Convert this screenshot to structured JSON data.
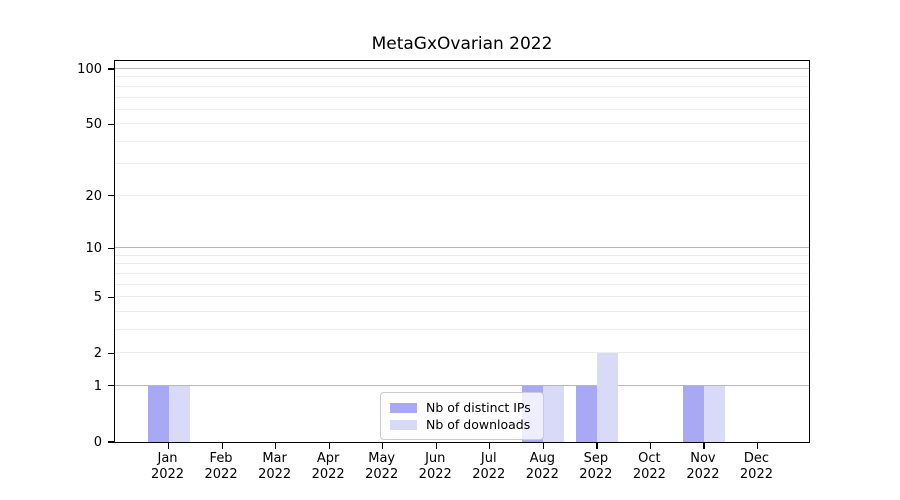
{
  "chart_data": {
    "type": "bar",
    "title": "MetaGxOvarian 2022",
    "y_scale": "log10(1+y)",
    "categories": [
      "Jan",
      "Feb",
      "Mar",
      "Apr",
      "May",
      "Jun",
      "Jul",
      "Aug",
      "Sep",
      "Oct",
      "Nov",
      "Dec"
    ],
    "x_tick_year": "2022",
    "series": [
      {
        "name": "Nb of distinct IPs",
        "key": "distinct-ips",
        "color": "#a8a8f4",
        "values": [
          1,
          0,
          0,
          0,
          0,
          0,
          0,
          1,
          1,
          0,
          1,
          0
        ]
      },
      {
        "name": "Nb of downloads",
        "key": "downloads",
        "color": "#d9d9f8",
        "values": [
          1,
          0,
          0,
          0,
          0,
          0,
          0,
          1,
          2,
          0,
          1,
          0
        ]
      }
    ],
    "y_ticks": [
      0,
      1,
      2,
      5,
      10,
      20,
      50,
      100
    ],
    "ylim": [
      0,
      113
    ],
    "gridlines": {
      "major": [
        1,
        10,
        100
      ],
      "minor": [
        2,
        3,
        4,
        5,
        6,
        7,
        8,
        9,
        20,
        30,
        40,
        50,
        60,
        70,
        80,
        90
      ]
    },
    "legend_position": "lower-center",
    "colors": {
      "major_grid": "#b8b8b8",
      "minor_grid": "#ececec",
      "axis": "#000000"
    }
  }
}
